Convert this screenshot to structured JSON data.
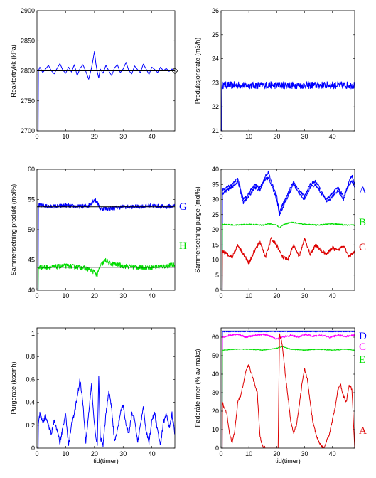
{
  "chart_data": [
    {
      "type": "line",
      "ylabel": "Reaktortrykk (kPa)",
      "xlabel": "",
      "xlim": [
        0,
        48
      ],
      "ylim": [
        2700,
        2900
      ],
      "xticks": [
        0,
        10,
        20,
        30,
        40
      ],
      "yticks": [
        2700,
        2750,
        2800,
        2850,
        2900
      ],
      "series": [
        {
          "color": "#0000ff",
          "style": "noisy",
          "noise": 0,
          "x": [
            0,
            0.4,
            0.5,
            1,
            2,
            3,
            4,
            5,
            6,
            7,
            8,
            9,
            10,
            11,
            12,
            13,
            14,
            15,
            16,
            17,
            18,
            19,
            19.5,
            20,
            20.5,
            21,
            21.5,
            22,
            23,
            24,
            25,
            26,
            27,
            28,
            29,
            30,
            31,
            32,
            33,
            34,
            35,
            36,
            37,
            38,
            39,
            40,
            41,
            42,
            43,
            44,
            45,
            46,
            47,
            48
          ],
          "y": [
            2700,
            2700,
            2800,
            2806,
            2797,
            2803,
            2809,
            2800,
            2795,
            2804,
            2812,
            2801,
            2796,
            2806,
            2798,
            2810,
            2792,
            2804,
            2810,
            2799,
            2786,
            2805,
            2818,
            2832,
            2812,
            2798,
            2788,
            2803,
            2796,
            2809,
            2800,
            2792,
            2805,
            2810,
            2797,
            2803,
            2814,
            2800,
            2795,
            2808,
            2802,
            2797,
            2811,
            2803,
            2794,
            2806,
            2802,
            2797,
            2806,
            2800,
            2804,
            2799,
            2803,
            2800
          ]
        },
        {
          "color": "#000000",
          "style": "flat",
          "noise": 0,
          "x": [
            0,
            48
          ],
          "y": [
            2800,
            2800
          ]
        }
      ]
    },
    {
      "type": "line",
      "ylabel": "Produksjonsrate (m3/h)",
      "xlabel": "",
      "xlim": [
        0,
        48
      ],
      "ylim": [
        21,
        26
      ],
      "xticks": [
        0,
        10,
        20,
        30,
        40
      ],
      "yticks": [
        21,
        22,
        23,
        24,
        25,
        26
      ],
      "series": [
        {
          "color": "#0000ff",
          "style": "noisy",
          "noise": 0.15,
          "x": [
            0,
            0.2,
            0.3,
            48
          ],
          "y": [
            21,
            21,
            22.9,
            22.9
          ]
        }
      ]
    },
    {
      "type": "line",
      "ylabel": "Sammensetning produkt (mol%)",
      "xlabel": "",
      "xlim": [
        0,
        48
      ],
      "ylim": [
        40,
        60
      ],
      "xticks": [
        0,
        10,
        20,
        30,
        40
      ],
      "yticks": [
        40,
        45,
        50,
        55,
        60
      ],
      "series": [
        {
          "name": "G",
          "color": "#0000ff",
          "style": "noisy",
          "noise": 0.35,
          "x": [
            0,
            0.4,
            0.5,
            5,
            10,
            15,
            18,
            20,
            21,
            22,
            25,
            30,
            35,
            40,
            45,
            48
          ],
          "y": [
            40,
            40,
            54,
            53.8,
            54,
            53.8,
            54,
            55,
            54.5,
            53.5,
            53.5,
            53.8,
            53.8,
            54,
            53.8,
            54
          ]
        },
        {
          "name": "H",
          "color": "#00dd00",
          "style": "noisy",
          "noise": 0.4,
          "x": [
            0,
            0.4,
            0.5,
            5,
            10,
            15,
            18,
            20,
            21,
            22,
            24,
            25,
            30,
            35,
            40,
            45,
            48
          ],
          "y": [
            40,
            40,
            43.8,
            43.8,
            44,
            43.8,
            43.5,
            43,
            42.5,
            44,
            45,
            44.5,
            44,
            43.8,
            43.8,
            44,
            44.2
          ]
        },
        {
          "color": "#000000",
          "style": "flat",
          "noise": 0,
          "x": [
            0,
            48
          ],
          "y": [
            53.8,
            53.8
          ]
        },
        {
          "color": "#000000",
          "style": "flat",
          "noise": 0,
          "x": [
            0,
            48
          ],
          "y": [
            43.8,
            43.8
          ]
        }
      ]
    },
    {
      "type": "line",
      "ylabel": "Sammensetning purge (mol%)",
      "xlabel": "",
      "xlim": [
        0,
        48
      ],
      "ylim": [
        0,
        40
      ],
      "xticks": [
        0,
        10,
        20,
        30,
        40
      ],
      "yticks": [
        0,
        5,
        10,
        15,
        20,
        25,
        30,
        35,
        40
      ],
      "series": [
        {
          "name": "A",
          "color": "#0000ff",
          "style": "noisy",
          "noise": 0.5,
          "x": [
            0,
            0.4,
            0.5,
            2,
            4,
            6,
            8,
            10,
            12,
            14,
            16,
            17,
            18,
            20,
            21,
            22,
            24,
            26,
            28,
            30,
            32,
            34,
            36,
            38,
            40,
            42,
            44,
            46,
            47,
            48
          ],
          "y": [
            0,
            0,
            32,
            33,
            34,
            36,
            29,
            31,
            34,
            33,
            38,
            39,
            36,
            31,
            26,
            28,
            32,
            36,
            33,
            31,
            35,
            36,
            33,
            29,
            31,
            33,
            30,
            36,
            38,
            35
          ]
        },
        {
          "color": "#0000ff",
          "style": "noisy",
          "noise": 0.5,
          "x": [
            0,
            0.4,
            0.5,
            2,
            4,
            6,
            8,
            10,
            12,
            14,
            16,
            17,
            18,
            20,
            21,
            22,
            24,
            26,
            28,
            30,
            32,
            34,
            36,
            38,
            40,
            42,
            44,
            46,
            47,
            48
          ],
          "y": [
            0,
            0,
            33,
            34,
            35,
            37,
            30,
            32,
            35,
            34,
            37,
            37,
            35,
            30,
            25,
            27,
            31,
            35,
            32,
            30,
            34,
            35,
            32,
            30,
            32,
            34,
            31,
            35,
            36,
            34
          ]
        },
        {
          "name": "B",
          "color": "#00dd00",
          "style": "noisy",
          "noise": 0.2,
          "x": [
            0,
            0.4,
            0.5,
            5,
            10,
            15,
            17,
            20,
            21,
            22,
            25,
            30,
            35,
            40,
            45,
            48
          ],
          "y": [
            0,
            0,
            21.8,
            21.5,
            21.8,
            21.5,
            22,
            21.5,
            20.5,
            21.5,
            22.5,
            21.8,
            21.5,
            22,
            21.5,
            21.5
          ]
        },
        {
          "name": "C",
          "color": "#dd0000",
          "style": "noisy",
          "noise": 0.6,
          "x": [
            0,
            0.4,
            0.5,
            2,
            4,
            6,
            8,
            10,
            12,
            14,
            16,
            18,
            20,
            22,
            24,
            26,
            28,
            30,
            32,
            34,
            36,
            38,
            40,
            42,
            44,
            46,
            48
          ],
          "y": [
            0,
            0,
            13,
            12,
            11,
            15,
            12,
            9,
            13,
            16,
            11,
            17,
            15,
            11,
            10,
            15,
            11,
            17,
            12,
            15,
            13,
            12,
            14,
            13,
            15,
            11,
            13
          ]
        }
      ]
    },
    {
      "type": "line",
      "ylabel": "Purgerate (kscmh)",
      "xlabel": "tid(timer)",
      "xlim": [
        0,
        48
      ],
      "ylim": [
        0,
        1.05
      ],
      "xticks": [
        0,
        10,
        20,
        30,
        40
      ],
      "yticks": [
        0,
        0.2,
        0.4,
        0.6,
        0.8,
        1
      ],
      "ytick_labels": [
        "0",
        "0.2",
        "0.4",
        "0.6",
        "0.8",
        "1"
      ],
      "series": [
        {
          "color": "#0000ff",
          "style": "noisy",
          "noise": 0.02,
          "x": [
            0,
            0.4,
            0.5,
            1,
            2,
            3,
            4,
            5,
            6,
            7,
            8,
            9,
            10,
            11,
            12,
            13,
            14,
            15,
            16,
            17,
            18,
            19,
            20,
            21,
            21.5,
            22,
            23,
            24,
            25,
            26,
            27,
            28,
            29,
            30,
            31,
            32,
            33,
            34,
            35,
            36,
            37,
            38,
            39,
            40,
            41,
            42,
            43,
            44,
            45,
            46,
            47,
            48
          ],
          "y": [
            0,
            0,
            0.2,
            0.3,
            0.22,
            0.28,
            0.2,
            0.12,
            0.25,
            0.15,
            0.05,
            0.18,
            0.3,
            0.02,
            0.2,
            0.3,
            0.45,
            0.6,
            0.38,
            0.05,
            0.3,
            0.55,
            0.2,
            0.02,
            0.63,
            0.1,
            0.02,
            0.3,
            0.5,
            0.35,
            0.05,
            0.15,
            0.3,
            0.38,
            0.2,
            0.12,
            0.3,
            0.25,
            0.05,
            0.2,
            0.35,
            0.15,
            0.05,
            0.25,
            0.3,
            0.15,
            0.02,
            0.22,
            0.3,
            0.18,
            0.3,
            0.12
          ]
        }
      ]
    },
    {
      "type": "line",
      "ylabel": "Føderåte rmer (% av maks)",
      "xlabel": "tid(timer)",
      "xlim": [
        0,
        48
      ],
      "ylim": [
        0,
        65
      ],
      "xticks": [
        0,
        10,
        20,
        30,
        40
      ],
      "yticks": [
        0,
        10,
        20,
        30,
        40,
        50,
        60
      ],
      "series": [
        {
          "name": "D",
          "color": "#0000ff",
          "style": "noisy",
          "noise": 0.2,
          "x": [
            0,
            0.4,
            0.5,
            48
          ],
          "y": [
            0,
            0,
            63,
            63
          ]
        },
        {
          "color": "#000000",
          "style": "flat",
          "noise": 0,
          "x": [
            0,
            48
          ],
          "y": [
            63.3,
            63.3
          ]
        },
        {
          "name": "C",
          "color": "#ff00ff",
          "style": "noisy",
          "noise": 0.5,
          "x": [
            0,
            0.4,
            0.5,
            3,
            6,
            9,
            12,
            15,
            18,
            20,
            22,
            25,
            28,
            30,
            33,
            36,
            39,
            42,
            45,
            48
          ],
          "y": [
            0,
            0,
            60,
            61,
            61.5,
            60,
            61,
            61.5,
            60.5,
            59,
            60,
            61,
            60,
            61.5,
            60.5,
            61,
            60,
            61,
            60.5,
            61
          ]
        },
        {
          "name": "E",
          "color": "#00dd00",
          "style": "noisy",
          "noise": 0.2,
          "x": [
            0,
            0.4,
            0.5,
            5,
            10,
            15,
            20,
            22,
            25,
            30,
            35,
            40,
            45,
            48
          ],
          "y": [
            0,
            0,
            53,
            53.5,
            53.5,
            53,
            54,
            55,
            53.5,
            53,
            53.5,
            53,
            53.5,
            53
          ]
        },
        {
          "name": "A",
          "color": "#dd0000",
          "style": "noisy",
          "noise": 0.7,
          "x": [
            0,
            0.4,
            0.5,
            1,
            2,
            3,
            4,
            5,
            6,
            7,
            8,
            9,
            10,
            11,
            12,
            13,
            14,
            15,
            16,
            17,
            18,
            19,
            20,
            20.5,
            21,
            22,
            23,
            24,
            25,
            26,
            27,
            28,
            29,
            30,
            31,
            32,
            33,
            34,
            35,
            36,
            37,
            38,
            39,
            40,
            41,
            42,
            43,
            44,
            45,
            46,
            47,
            48
          ],
          "y": [
            0,
            0,
            25,
            22,
            19,
            8,
            3,
            10,
            25,
            28,
            35,
            42,
            45,
            40,
            35,
            30,
            6,
            1,
            0,
            0,
            0,
            0,
            0,
            0,
            62,
            56,
            41,
            28,
            15,
            8,
            12,
            22,
            34,
            43,
            37,
            25,
            14,
            8,
            4,
            1,
            0,
            4,
            8,
            15,
            22,
            32,
            34,
            28,
            25,
            34,
            32,
            0
          ]
        }
      ]
    }
  ]
}
